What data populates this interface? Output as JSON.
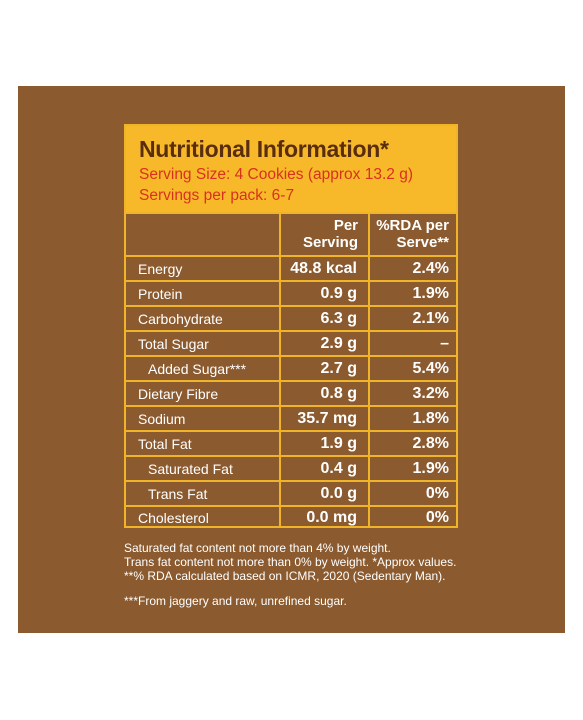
{
  "header": {
    "title": "Nutritional Information*",
    "serving_size": "Serving Size: 4 Cookies (approx 13.2 g)",
    "servings_per_pack": "Servings per pack: 6-7"
  },
  "columns": {
    "per_serving_line1": "Per",
    "per_serving_line2": "Serving",
    "rda_line1": "%RDA per",
    "rda_line2": "Serve**"
  },
  "rows": [
    {
      "name": "Energy",
      "value": "48.8 kcal",
      "rda": "2.4%"
    },
    {
      "name": "Protein",
      "value": "0.9 g",
      "rda": "1.9%"
    },
    {
      "name": "Carbohydrate",
      "value": "6.3 g",
      "rda": "2.1%"
    },
    {
      "name": "Total Sugar",
      "value": "2.9 g",
      "rda": "–"
    },
    {
      "name": "Added Sugar***",
      "value": "2.7 g",
      "rda": "5.4%"
    },
    {
      "name": "Dietary Fibre",
      "value": "0.8 g",
      "rda": "3.2%"
    },
    {
      "name": "Sodium",
      "value": "35.7 mg",
      "rda": "1.8%"
    },
    {
      "name": "Total Fat",
      "value": "1.9 g",
      "rda": "2.8%"
    },
    {
      "name": "Saturated Fat",
      "value": "0.4 g",
      "rda": "1.9%"
    },
    {
      "name": "Trans Fat",
      "value": "0.0 g",
      "rda": "0%"
    },
    {
      "name": "Cholesterol",
      "value": "0.0 mg",
      "rda": "0%"
    }
  ],
  "notes": {
    "line1": "Saturated fat content not more than 4% by weight.",
    "line2": "Trans fat content not more than 0% by weight. *Approx values.",
    "line3": "**% RDA calculated based on ICMR, 2020 (Sedentary Man).",
    "line4": "***From jaggery and raw, unrefined sugar."
  },
  "colors": {
    "background": "#8b5a2e",
    "header": "#f7b92a",
    "title": "#5a2d0e",
    "subtitle": "#d8321f",
    "border": "#f0b429"
  }
}
